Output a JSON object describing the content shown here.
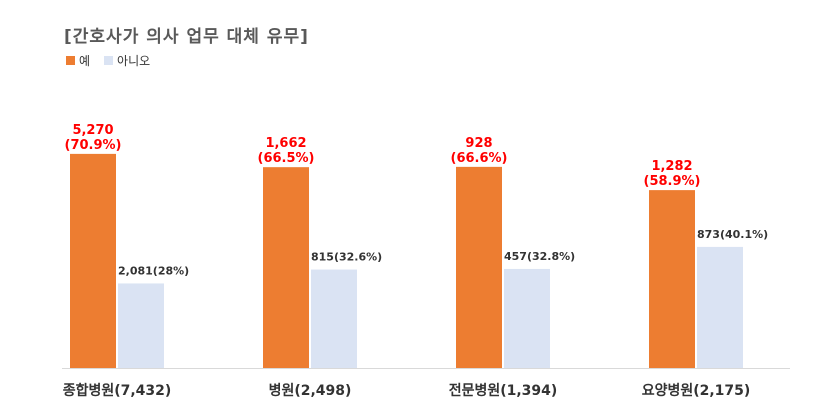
{
  "chart_data": {
    "type": "bar",
    "title": "[간호사가 의사 업무 대체 유무]",
    "categories": [
      "종합병원(7,432)",
      "병원(2,498)",
      "전문병원(1,394)",
      "요양병원(2,175)"
    ],
    "series": [
      {
        "name": "예",
        "color": "#ed7d31",
        "values": [
          5270,
          1662,
          928,
          1282
        ],
        "percents": [
          70.9,
          66.5,
          66.6,
          58.9
        ],
        "labels_top": [
          "5,270",
          "1,662",
          "928",
          "1,282"
        ],
        "labels_bottom": [
          "(70.9%)",
          "(66.5%)",
          "(66.6%)",
          "(58.9%)"
        ]
      },
      {
        "name": "아니오",
        "color": "#dae3f3",
        "values": [
          2081,
          815,
          457,
          873
        ],
        "percents": [
          28,
          32.6,
          32.8,
          40.1
        ],
        "labels": [
          "2,081(28%)",
          "815(32.6%)",
          "457(32.8%)",
          "873(40.1%)"
        ]
      }
    ],
    "ylim": [
      0,
      100
    ],
    "grid": false,
    "legend_position": "top-left"
  }
}
